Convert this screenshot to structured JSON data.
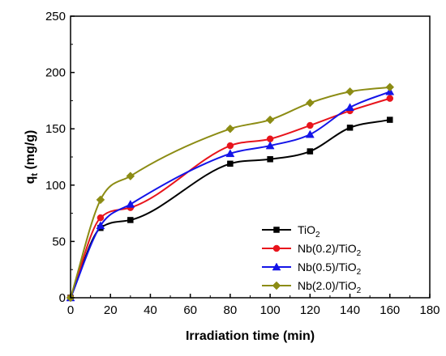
{
  "chart_data": {
    "type": "line",
    "xlabel": "Irradiation time (min)",
    "ylabel_main": "q",
    "ylabel_sub": "t",
    "ylabel_rest": " (mg/g)",
    "xlim": [
      0,
      180
    ],
    "ylim": [
      0,
      250
    ],
    "xticks": [
      0,
      20,
      40,
      60,
      80,
      100,
      120,
      140,
      160,
      180
    ],
    "yticks": [
      0,
      50,
      100,
      150,
      200,
      250
    ],
    "grid": false,
    "legend_position": "bottom-right",
    "series": [
      {
        "name": "TiO2",
        "label_main": "TiO",
        "label_sub": "2",
        "label_suffix": "",
        "color": "#000000",
        "marker": "square",
        "x": [
          0,
          15,
          30,
          80,
          100,
          120,
          140,
          160
        ],
        "y": [
          0,
          62,
          69,
          119,
          123,
          130,
          151,
          158
        ]
      },
      {
        "name": "Nb(0.2)/TiO2",
        "label_main": "Nb(0.2)/TiO",
        "label_sub": "2",
        "label_suffix": "",
        "color": "#e8141c",
        "marker": "circle",
        "x": [
          0,
          15,
          30,
          80,
          100,
          120,
          140,
          160
        ],
        "y": [
          0,
          71,
          80,
          135,
          141,
          153,
          166,
          177
        ]
      },
      {
        "name": "Nb(0.5)/TiO2",
        "label_main": "Nb(0.5)/TiO",
        "label_sub": "2",
        "label_suffix": "",
        "color": "#1414e8",
        "marker": "triangle",
        "x": [
          0,
          15,
          30,
          80,
          100,
          120,
          140,
          160
        ],
        "y": [
          0,
          64,
          83,
          128,
          135,
          145,
          169,
          183
        ]
      },
      {
        "name": "Nb(2.0)/TiO2",
        "label_main": "Nb(2.0)/TiO",
        "label_sub": "2",
        "label_suffix": "",
        "color": "#8c8c14",
        "marker": "diamond",
        "x": [
          0,
          15,
          30,
          80,
          100,
          120,
          140,
          160
        ],
        "y": [
          0,
          87,
          108,
          150,
          158,
          173,
          183,
          187
        ]
      }
    ]
  }
}
